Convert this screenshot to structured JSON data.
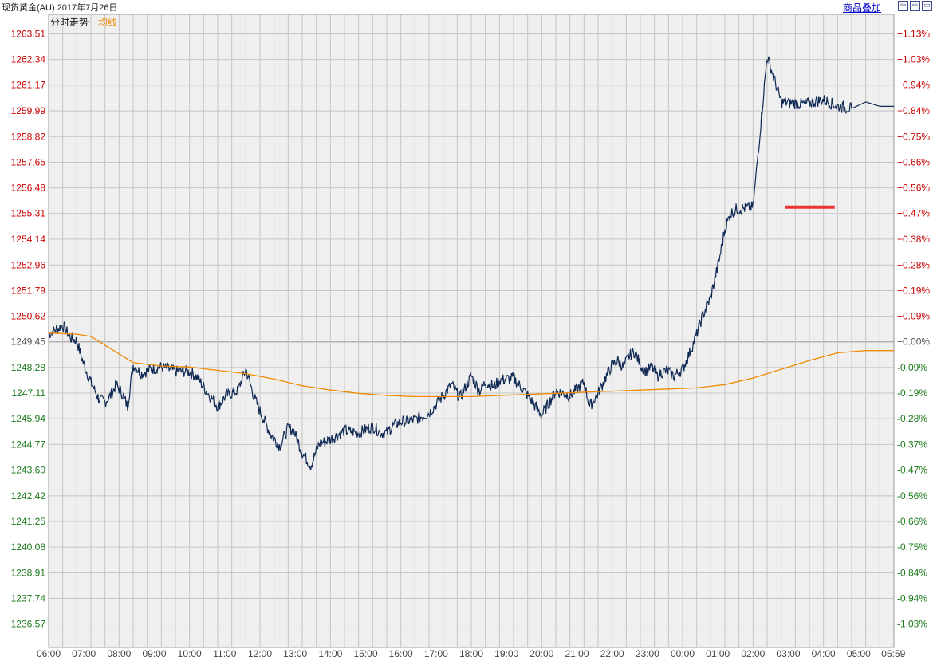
{
  "header": {
    "title": "现货黄金(AU) 2017年7月26日",
    "overlay_label": "商品叠加",
    "nav_icons": [
      "arrow-left-icon",
      "arrow-right-icon",
      "window-icon"
    ]
  },
  "legend": {
    "price_label": "分时走势",
    "avg_label": "均线"
  },
  "colors": {
    "plot_bg": "#efefef",
    "grid": "#c4c4c4",
    "price_line": "#102a55",
    "avg_line": "#f08a00",
    "marker": "#ee3333",
    "up_text": "#cc0000",
    "down_text": "#1b7a1b"
  },
  "chart_data": {
    "type": "line",
    "title": "",
    "y_ticks_left": [
      "1263.51",
      "1262.34",
      "1261.17",
      "1259.99",
      "1258.82",
      "1257.65",
      "1256.48",
      "1255.31",
      "1254.14",
      "1252.96",
      "1251.79",
      "1250.62",
      "1249.45",
      "1248.28",
      "1247.11",
      "1245.94",
      "1244.77",
      "1243.60",
      "1242.42",
      "1241.25",
      "1240.08",
      "1238.91",
      "1237.74",
      "1236.57"
    ],
    "y_ticks_right": [
      "+1.13%",
      "+1.03%",
      "+0.94%",
      "+0.84%",
      "+0.75%",
      "+0.66%",
      "+0.56%",
      "+0.47%",
      "+0.38%",
      "+0.28%",
      "+0.19%",
      "+0.09%",
      "+0.00%",
      "-0.09%",
      "-0.19%",
      "-0.28%",
      "-0.37%",
      "-0.47%",
      "-0.56%",
      "-0.66%",
      "-0.75%",
      "-0.84%",
      "-0.94%",
      "-1.03%"
    ],
    "x_ticks": [
      "06:00",
      "07:00",
      "08:00",
      "09:00",
      "10:00",
      "11:00",
      "12:00",
      "13:00",
      "14:00",
      "15:00",
      "16:00",
      "17:00",
      "18:00",
      "19:00",
      "20:00",
      "21:00",
      "22:00",
      "23:00",
      "00:00",
      "01:00",
      "02:00",
      "03:00",
      "04:00",
      "05:00",
      "05:59"
    ],
    "ylim": [
      1235.5,
      1264.4
    ],
    "reference_price": 1249.45,
    "series": [
      {
        "name": "分时走势",
        "x_hours": [
          0,
          0.5,
          0.8,
          1.0,
          1.2,
          1.5,
          1.8,
          2.0,
          2.2,
          2.4,
          2.6,
          2.8,
          3.0,
          3.3,
          3.6,
          4.0,
          4.5,
          5.0,
          5.3,
          5.6,
          6.0,
          6.3,
          6.7,
          7.0,
          7.3,
          7.6,
          7.9,
          8.2,
          8.5,
          8.7,
          9.0,
          9.3,
          9.6,
          10.0,
          10.5,
          11.0,
          11.5,
          11.8,
          12.0,
          12.2,
          12.5,
          13.0,
          13.5,
          14.0,
          14.3,
          14.6,
          15.0,
          15.3,
          15.5,
          15.8,
          16.0,
          16.5,
          17.0,
          17.5,
          18.0,
          18.5,
          19.0,
          19.2,
          19.5,
          19.8,
          20.0,
          20.2,
          20.4,
          20.6,
          20.8,
          21.0,
          21.2,
          21.4,
          21.6,
          21.8,
          22.0,
          22.2,
          22.5,
          22.8,
          23.0,
          23.2,
          23.5,
          23.8,
          24.0,
          24.2,
          24.4,
          25.0,
          25.5,
          26.0,
          26.8,
          27.5,
          28.0,
          28.5,
          29.0,
          29.5,
          30.0
        ],
        "values": [
          1249.8,
          1250.2,
          1249.6,
          1249.5,
          1248.6,
          1247.6,
          1246.8,
          1246.7,
          1247.0,
          1247.5,
          1247.1,
          1246.5,
          1248.4,
          1248.0,
          1248.2,
          1248.3,
          1248.1,
          1248.1,
          1247.8,
          1247.2,
          1246.5,
          1247.0,
          1247.2,
          1248.2,
          1246.9,
          1246.0,
          1245.2,
          1244.7,
          1245.5,
          1245.4,
          1244.4,
          1243.8,
          1244.8,
          1245.0,
          1245.4,
          1245.3,
          1245.6,
          1245.3,
          1245.3,
          1245.6,
          1245.8,
          1245.9,
          1246.2,
          1247.0,
          1247.5,
          1246.9,
          1247.9,
          1247.2,
          1247.6,
          1247.4,
          1247.7,
          1247.8,
          1247.0,
          1246.1,
          1247.2,
          1247.0,
          1247.6,
          1246.5,
          1247.1,
          1247.9,
          1248.4,
          1248.6,
          1248.3,
          1248.8,
          1249.0,
          1248.4,
          1248.1,
          1248.3,
          1247.9,
          1248.1,
          1248.1,
          1247.9,
          1248.2,
          1249.1,
          1249.8,
          1250.6,
          1251.5,
          1253.2,
          1254.6,
          1255.3,
          1255.5,
          1255.6,
          1262.5,
          1260.4,
          1260.3,
          1260.5,
          1260.2,
          1260.1,
          1260.4,
          1260.2,
          1260.2
        ]
      },
      {
        "name": "均线",
        "x_hours": [
          0,
          1,
          1.5,
          2,
          3,
          4,
          5,
          6,
          7,
          8,
          9,
          10,
          11,
          12,
          13,
          14,
          15,
          16,
          17,
          18,
          19,
          20,
          21,
          22,
          23,
          24,
          25,
          26,
          27,
          28,
          29,
          29.5,
          30
        ],
        "values": [
          1249.85,
          1249.8,
          1249.7,
          1249.3,
          1248.5,
          1248.35,
          1248.3,
          1248.15,
          1248.0,
          1247.75,
          1247.45,
          1247.25,
          1247.1,
          1247.0,
          1246.95,
          1246.95,
          1246.95,
          1247.0,
          1247.05,
          1247.1,
          1247.15,
          1247.2,
          1247.25,
          1247.3,
          1247.35,
          1247.5,
          1247.8,
          1248.2,
          1248.6,
          1248.95,
          1249.05,
          1249.05,
          1249.05
        ]
      }
    ],
    "marker": {
      "price": 1255.6,
      "x_from": 26.15,
      "x_to": 27.9
    }
  }
}
